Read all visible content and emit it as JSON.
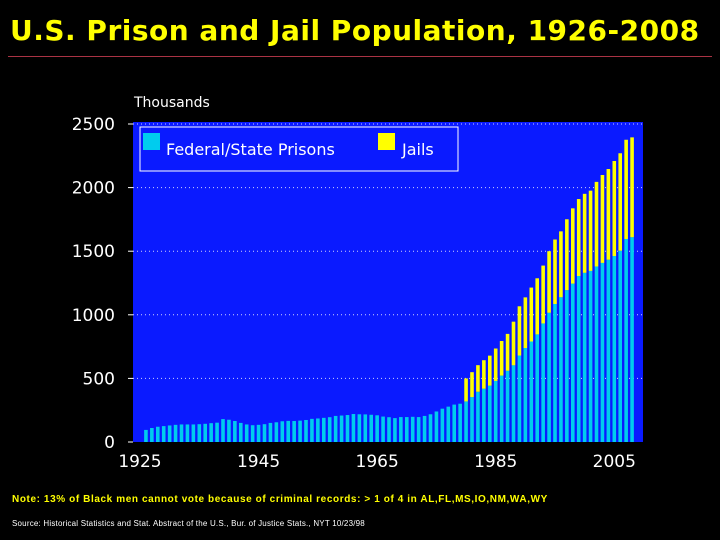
{
  "title": "U.S. Prison and Jail Population, 1926-2008",
  "note": "Note: 13% of Black men cannot vote because of criminal records: > 1 of 4 in AL,FL,MS,IO,NM,WA,WY",
  "source": "Source: Historical Statistics and Stat. Abstract of the U.S., Bur. of Justice Stats., NYT 10/23/98",
  "colors": {
    "background": "#000000",
    "plot_area": "#0a1aff",
    "prisons": "#00ccee",
    "jails": "#ffff00",
    "title": "#ffff00"
  },
  "chart_data": {
    "type": "bar",
    "stacked": true,
    "ylabel": "Thousands",
    "xlabel": "",
    "ylim": [
      0,
      2500
    ],
    "yticks": [
      0,
      500,
      1000,
      1500,
      2000,
      2500
    ],
    "xtick_labels": [
      "1925",
      "1945",
      "1965",
      "1985",
      "2005"
    ],
    "grid": "horizontal dotted",
    "legend_position": "top-left",
    "legend": [
      "Federal/State Prisons",
      "Jails"
    ],
    "x": [
      1926,
      1927,
      1928,
      1929,
      1930,
      1931,
      1932,
      1933,
      1934,
      1935,
      1936,
      1937,
      1938,
      1939,
      1940,
      1941,
      1942,
      1943,
      1944,
      1945,
      1946,
      1947,
      1948,
      1949,
      1950,
      1951,
      1952,
      1953,
      1954,
      1955,
      1956,
      1957,
      1958,
      1959,
      1960,
      1961,
      1962,
      1963,
      1964,
      1965,
      1966,
      1967,
      1968,
      1969,
      1970,
      1971,
      1972,
      1973,
      1974,
      1975,
      1976,
      1977,
      1978,
      1979,
      1980,
      1981,
      1982,
      1983,
      1984,
      1985,
      1986,
      1987,
      1988,
      1989,
      1990,
      1991,
      1992,
      1993,
      1994,
      1995,
      1996,
      1997,
      1998,
      1999,
      2000,
      2001,
      2002,
      2003,
      2004,
      2005,
      2006,
      2007,
      2008
    ],
    "series": [
      {
        "name": "Federal/State Prisons",
        "values": [
          95,
          110,
          120,
          125,
          130,
          135,
          138,
          138,
          138,
          140,
          143,
          148,
          152,
          180,
          175,
          165,
          150,
          138,
          132,
          135,
          140,
          150,
          155,
          163,
          166,
          165,
          168,
          173,
          182,
          185,
          190,
          195,
          205,
          208,
          212,
          220,
          218,
          217,
          214,
          210,
          200,
          195,
          188,
          196,
          196,
          198,
          196,
          205,
          218,
          240,
          262,
          278,
          294,
          301,
          319,
          353,
          395,
          419,
          443,
          480,
          522,
          560,
          603,
          680,
          739,
          790,
          846,
          932,
          1016,
          1085,
          1138,
          1194,
          1245,
          1305,
          1330,
          1345,
          1380,
          1408,
          1433,
          1462,
          1504,
          1596,
          1610
        ]
      },
      {
        "name": "Jails",
        "values": [
          0,
          0,
          0,
          0,
          0,
          0,
          0,
          0,
          0,
          0,
          0,
          0,
          0,
          0,
          0,
          0,
          0,
          0,
          0,
          0,
          0,
          0,
          0,
          0,
          0,
          0,
          0,
          0,
          0,
          0,
          0,
          0,
          0,
          0,
          0,
          0,
          0,
          0,
          0,
          0,
          0,
          0,
          0,
          0,
          0,
          0,
          0,
          0,
          0,
          0,
          0,
          0,
          0,
          0,
          181,
          196,
          209,
          224,
          236,
          255,
          272,
          290,
          343,
          387,
          398,
          424,
          441,
          455,
          484,
          507,
          518,
          557,
          592,
          605,
          621,
          631,
          665,
          691,
          713,
          747,
          766,
          780,
          785
        ]
      }
    ]
  }
}
